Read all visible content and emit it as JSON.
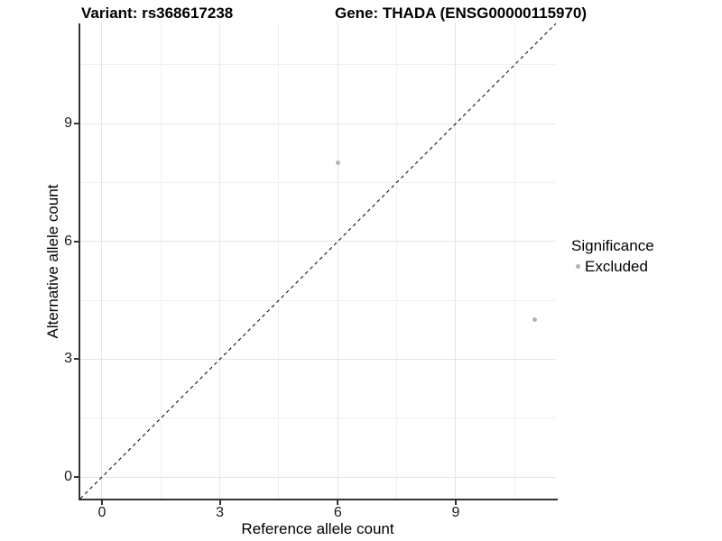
{
  "titles": {
    "variant": "Variant: rs368617238",
    "gene": "Gene: THADA (ENSG00000115970)"
  },
  "chart_data": {
    "type": "scatter",
    "title": "Variant: rs368617238   Gene: THADA (ENSG00000115970)",
    "xlabel": "Reference allele count",
    "ylabel": "Alternative allele count",
    "xlim": [
      -0.55,
      11.55
    ],
    "ylim": [
      -0.55,
      11.55
    ],
    "x_ticks": [
      0,
      3,
      6,
      9
    ],
    "y_ticks": [
      0,
      3,
      6,
      9
    ],
    "x_minor_ticks": [
      1.5,
      4.5,
      7.5,
      10.5
    ],
    "y_minor_ticks": [
      1.5,
      4.5,
      7.5,
      10.5
    ],
    "grid": true,
    "reference_line": {
      "type": "identity",
      "x1": -0.55,
      "y1": -0.55,
      "x2": 11.55,
      "y2": 11.55,
      "style": "dashed",
      "color": "#000000",
      "width": 1
    },
    "series": [
      {
        "name": "Excluded",
        "color": "#b3b3b3",
        "points": [
          {
            "x": 6,
            "y": 8
          },
          {
            "x": 11,
            "y": 4
          }
        ]
      }
    ],
    "legend": {
      "title": "Significance",
      "position": "right",
      "items": [
        {
          "label": "Excluded",
          "color": "#b3b3b3"
        }
      ]
    }
  },
  "colors": {
    "background": "#ffffff",
    "axis_line": "#333333",
    "grid_major": "#e4e4e4",
    "grid_minor": "#f0f0f0",
    "tick_text": "#1a1a1a",
    "point_excluded": "#b3b3b3",
    "reference_line": "#000000"
  }
}
